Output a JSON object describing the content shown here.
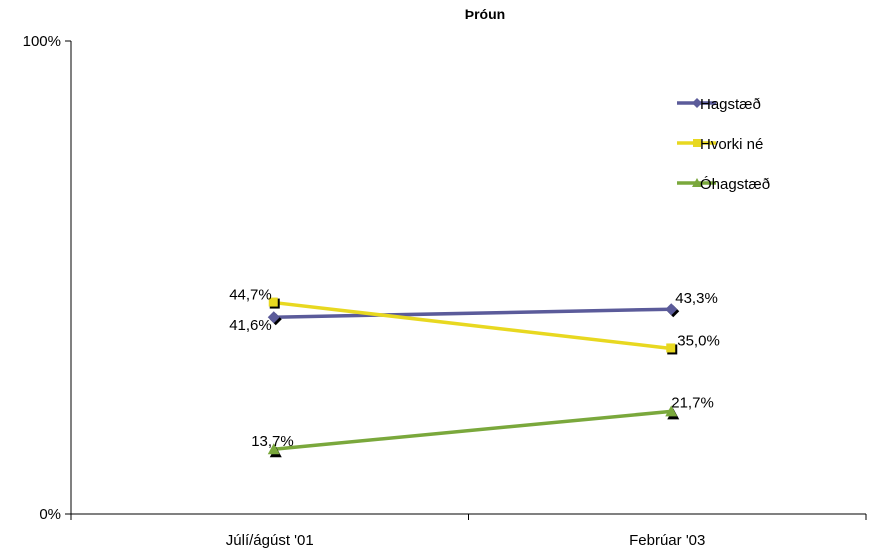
{
  "chart_data": {
    "type": "line",
    "title": "Þróun",
    "categories": [
      "Júlí/ágúst '01",
      "Febrúar '03"
    ],
    "ylim": [
      0,
      100
    ],
    "yticks": [
      "0%",
      "100%"
    ],
    "grid": false,
    "legend_position": "top-right",
    "series": [
      {
        "name": "Hagstæð",
        "values": [
          41.6,
          43.3
        ],
        "labels": [
          "41,6%",
          "43,3%"
        ],
        "color": "#5b5b9a",
        "marker": "diamond"
      },
      {
        "name": "Hvorki né",
        "values": [
          44.7,
          35.0
        ],
        "labels": [
          "44,7%",
          "35,0%"
        ],
        "color": "#e8d820",
        "marker": "square"
      },
      {
        "name": "Óhagstæð",
        "values": [
          13.7,
          21.7
        ],
        "labels": [
          "13,7%",
          "21,7%"
        ],
        "color": "#7aa83c",
        "marker": "triangle"
      }
    ]
  }
}
